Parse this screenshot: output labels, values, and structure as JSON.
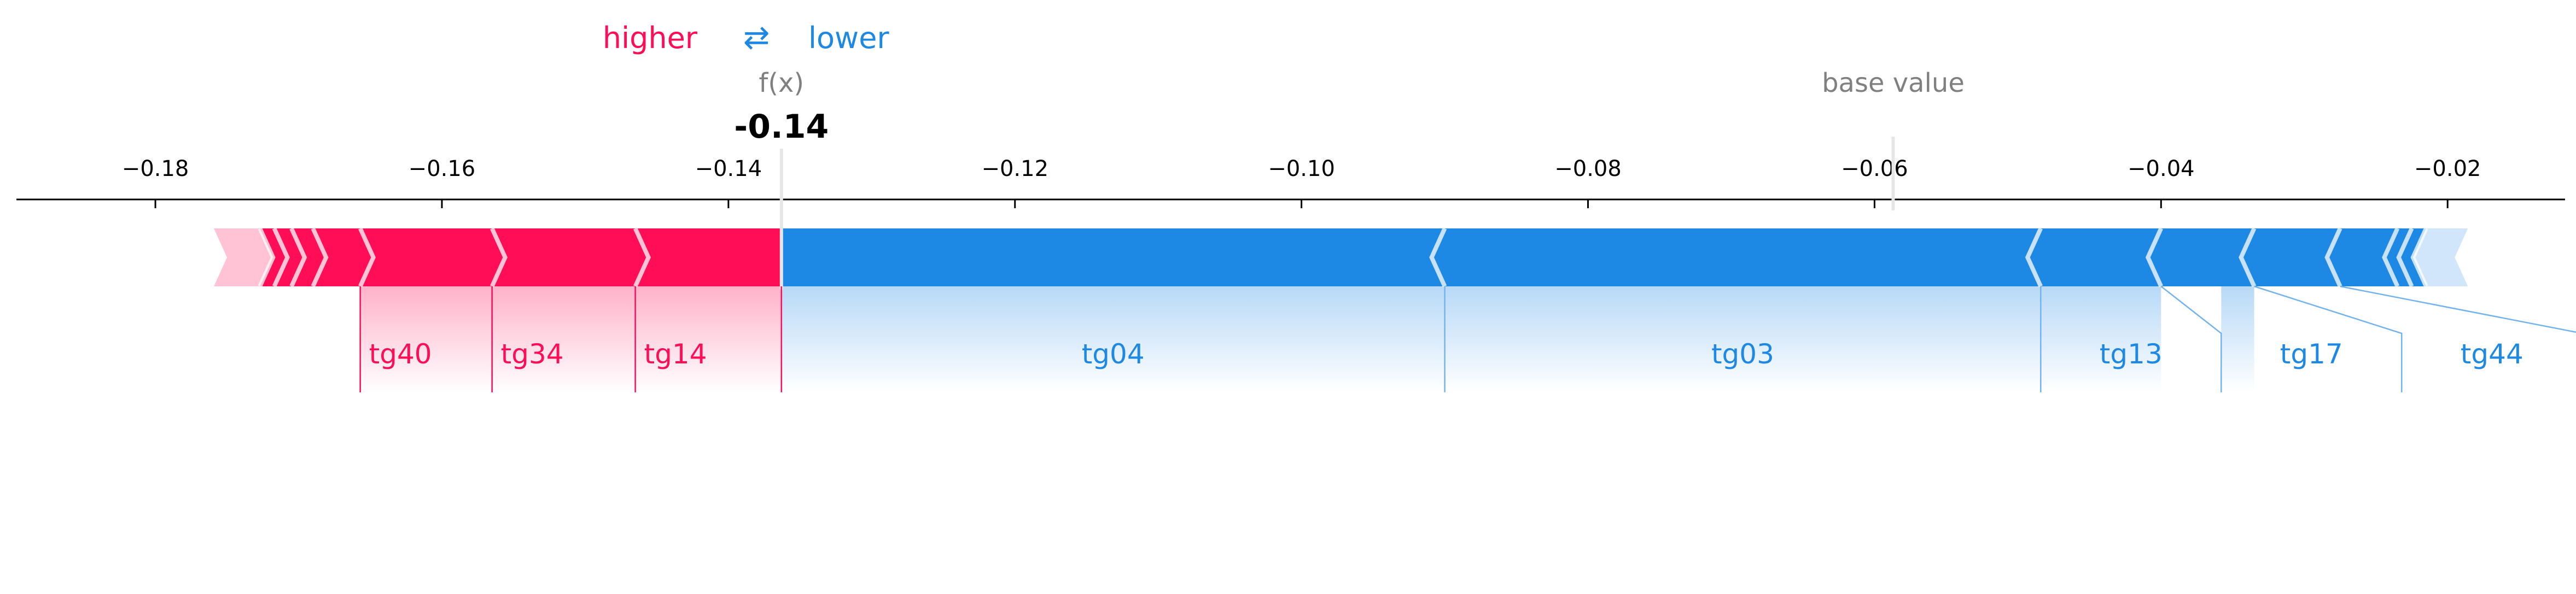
{
  "chart_data": {
    "type": "force",
    "legend": {
      "higher": "higher",
      "lower": "lower",
      "arrow": "⇄"
    },
    "fx": {
      "label": "f(x)",
      "value": -0.14,
      "display": "-0.14",
      "x": -0.1363
    },
    "base_value": {
      "label": "base value",
      "x": -0.0587
    },
    "xlim": [
      -0.1897,
      -0.0118
    ],
    "ticks": [
      {
        "value": -0.18,
        "label": "−0.18"
      },
      {
        "value": -0.16,
        "label": "−0.16"
      },
      {
        "value": -0.14,
        "label": "−0.14"
      },
      {
        "value": -0.12,
        "label": "−0.12"
      },
      {
        "value": -0.1,
        "label": "−0.10"
      },
      {
        "value": -0.08,
        "label": "−0.08"
      },
      {
        "value": -0.06,
        "label": "−0.06"
      },
      {
        "value": -0.04,
        "label": "−0.04"
      },
      {
        "value": -0.02,
        "label": "−0.02"
      }
    ],
    "positive": [
      {
        "name": "tg14",
        "from": -0.1363,
        "to": -0.1465
      },
      {
        "name": "tg34",
        "from": -0.1465,
        "to": -0.1565
      },
      {
        "name": "tg40",
        "from": -0.1565,
        "to": -0.1657
      },
      {
        "name": "",
        "from": -0.1657,
        "to": -0.169
      },
      {
        "name": "",
        "from": -0.169,
        "to": -0.1705
      },
      {
        "name": "",
        "from": -0.1705,
        "to": -0.1717
      },
      {
        "name": "",
        "from": -0.1717,
        "to": -0.1727
      },
      {
        "name": "",
        "from": -0.1727,
        "to": -0.175
      }
    ],
    "negative": [
      {
        "name": "tg04",
        "from": -0.1363,
        "to": -0.09
      },
      {
        "name": "tg03",
        "from": -0.09,
        "to": -0.0484
      },
      {
        "name": "tg13",
        "from": -0.0484,
        "to": -0.04
      },
      {
        "name": "tg17",
        "from": -0.04,
        "to": -0.0335
      },
      {
        "name": "tg44",
        "from": -0.0335,
        "to": -0.0275
      },
      {
        "name": "",
        "from": -0.0275,
        "to": -0.0235
      },
      {
        "name": "",
        "from": -0.0235,
        "to": -0.0225
      },
      {
        "name": "",
        "from": -0.0225,
        "to": -0.0215
      },
      {
        "name": "",
        "from": -0.0215,
        "to": -0.0195
      }
    ],
    "colors": {
      "positive": "#ff0d57",
      "negative": "#1e88e5",
      "positive_light": "#ffc3d5",
      "negative_light": "#d1e6fa"
    }
  }
}
